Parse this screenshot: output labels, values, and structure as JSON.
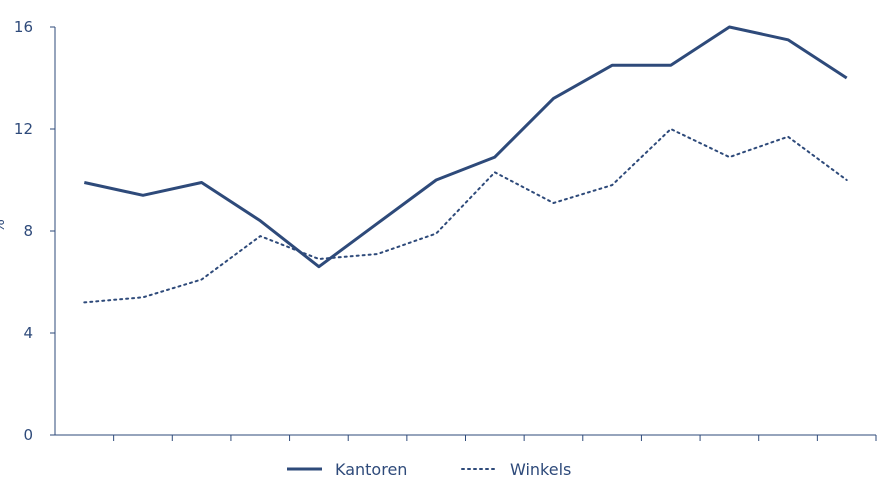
{
  "chart_data": {
    "type": "line",
    "title": "",
    "xlabel": "",
    "ylabel": "%",
    "ylim": [
      0,
      16
    ],
    "yticks": [
      0,
      4,
      8,
      12,
      16
    ],
    "x": [
      1,
      2,
      3,
      4,
      5,
      6,
      7,
      8,
      9,
      10,
      11,
      12,
      13,
      14
    ],
    "xlim": [
      0.5,
      14.5
    ],
    "grid": false,
    "legend_position": "bottom",
    "series": [
      {
        "name": "Kantoren",
        "style": "solid",
        "color": "#2e4a7a",
        "values": [
          9.9,
          9.4,
          9.9,
          8.4,
          6.6,
          8.3,
          10.0,
          10.9,
          13.2,
          14.5,
          14.5,
          16.0,
          15.5,
          14.0
        ]
      },
      {
        "name": "Winkels",
        "style": "dotted",
        "color": "#2e4a7a",
        "values": [
          5.2,
          5.4,
          6.1,
          7.8,
          6.9,
          7.1,
          7.9,
          10.3,
          9.1,
          9.8,
          12.0,
          10.9,
          11.7,
          10.0
        ]
      }
    ]
  }
}
